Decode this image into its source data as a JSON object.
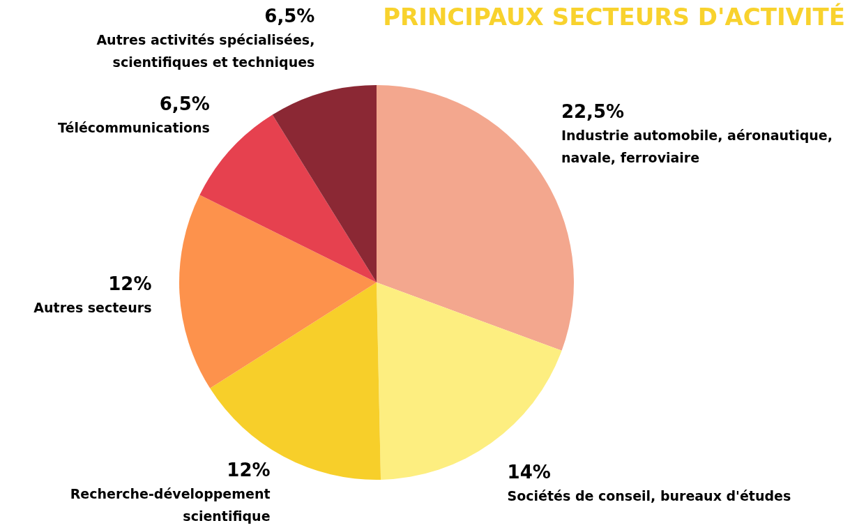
{
  "chart_data": {
    "type": "pie",
    "title": "PRINCIPAUX SECTEURS D'ACTIVITÉ",
    "categories": [
      "Industrie automobile, aéronautique, navale, ferroviaire",
      "Sociétés de conseil, bureaux d'études",
      "Recherche-développement scientifique",
      "Autres secteurs",
      "Télécommunications",
      "Autres activités spécialisées, scientifiques et techniques"
    ],
    "values": [
      22.5,
      14,
      12,
      12,
      6.5,
      6.5
    ],
    "value_labels": [
      "22,5%",
      "14%",
      "12%",
      "12%",
      "6,5%",
      "6,5%"
    ],
    "colors": [
      "#f3a78e",
      "#fdee80",
      "#f7cf2a",
      "#fd924c",
      "#e6414f",
      "#8b2834"
    ],
    "legend": false
  }
}
